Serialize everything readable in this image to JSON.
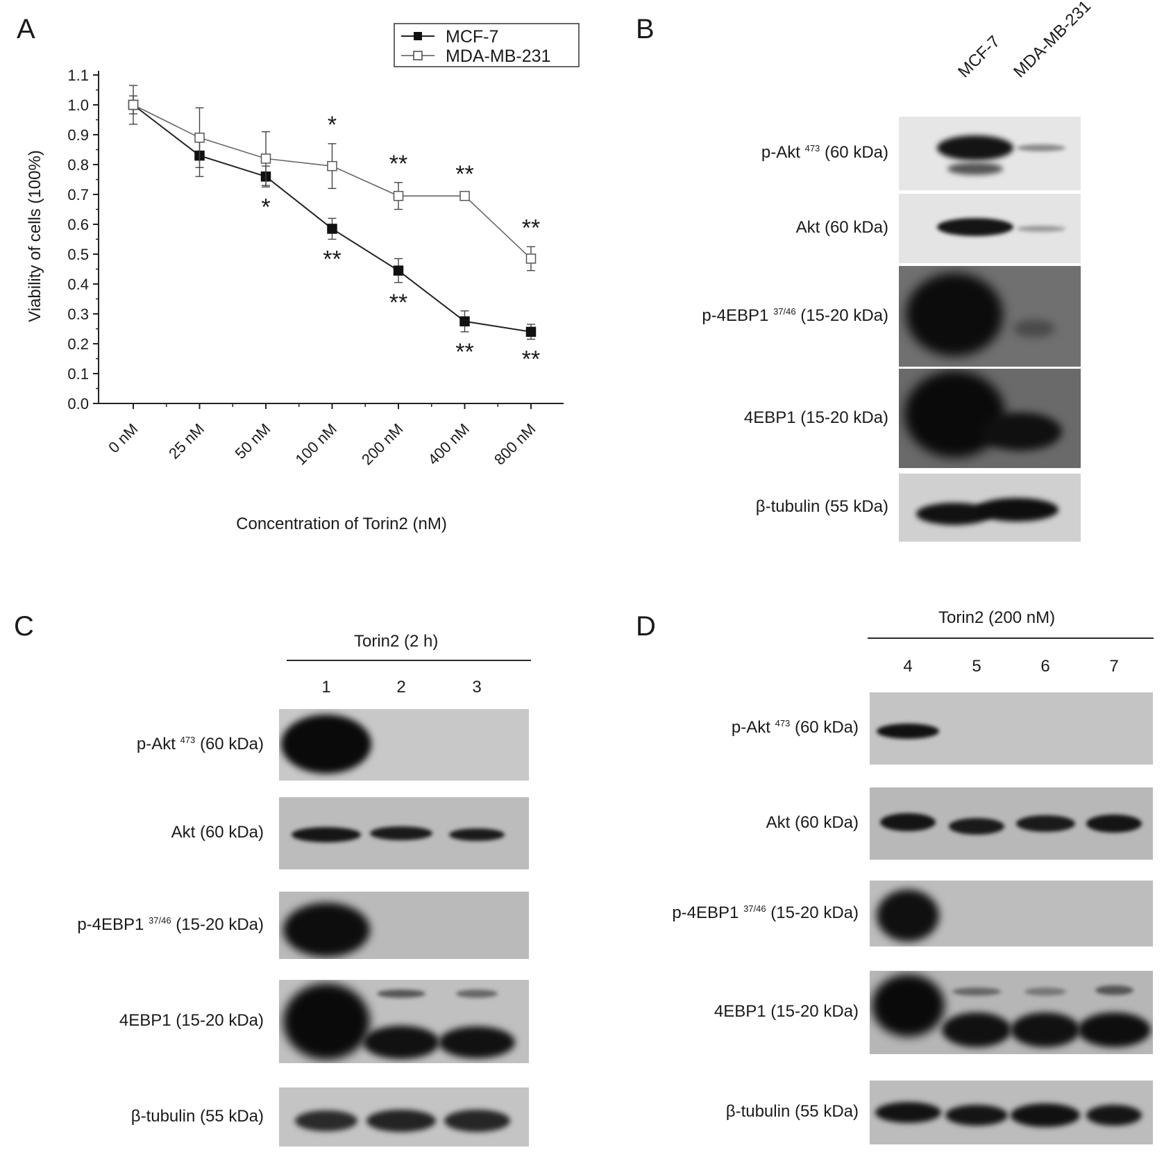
{
  "panels": {
    "a": "A",
    "b": "B",
    "c": "C",
    "d": "D"
  },
  "chart_data": {
    "type": "line",
    "xlabel": "Concentration of Torin2  (nM)",
    "ylabel": "Viability of cells (100%)",
    "categories": [
      "0 nM",
      "25 nM",
      "50 nM",
      "100 nM",
      "200 nM",
      "400 nM",
      "800 nM"
    ],
    "ylim": [
      0,
      1.1
    ],
    "yticks": [
      "0.0",
      "0.1",
      "0.2",
      "0.3",
      "0.4",
      "0.5",
      "0.6",
      "0.7",
      "0.8",
      "0.9",
      "1.0",
      "1.1"
    ],
    "legend_position": "top-right",
    "series": [
      {
        "name": "MCF-7",
        "marker": "filled-square",
        "values": [
          1.0,
          0.83,
          0.76,
          0.585,
          0.445,
          0.275,
          0.24
        ],
        "errors": [
          0.03,
          0.07,
          0.035,
          0.035,
          0.04,
          0.035,
          0.025
        ],
        "sig": [
          "",
          "",
          "*",
          "**",
          "**",
          "**",
          "**"
        ]
      },
      {
        "name": "MDA-MB-231",
        "marker": "open-square",
        "values": [
          1.0,
          0.89,
          0.82,
          0.795,
          0.695,
          0.695,
          0.485
        ],
        "errors": [
          0.065,
          0.1,
          0.09,
          0.075,
          0.045,
          0.01,
          0.04
        ],
        "sig": [
          "",
          "",
          "",
          "*",
          "**",
          "**",
          "**"
        ]
      }
    ]
  },
  "blot_b": {
    "columns": [
      "MCF-7",
      "MDA-MB-231"
    ],
    "rows": [
      {
        "name": "p-Akt",
        "sup": "473",
        "kda": "(60 kDa)"
      },
      {
        "name": "Akt",
        "sup": "",
        "kda": "(60 kDa)"
      },
      {
        "name": "p-4EBP1",
        "sup": "37/46",
        "kda": "(15-20 kDa)"
      },
      {
        "name": "4EBP1",
        "sup": "",
        "kda": "(15-20 kDa)"
      },
      {
        "name": "β-tubulin",
        "sup": "",
        "kda": "(55 kDa)"
      }
    ]
  },
  "blot_c": {
    "header": "Torin2 (2 h)",
    "lanes": [
      "1",
      "2",
      "3"
    ],
    "rows": [
      {
        "name": "p-Akt",
        "sup": "473",
        "kda": "(60 kDa)"
      },
      {
        "name": "Akt",
        "sup": "",
        "kda": "(60 kDa)"
      },
      {
        "name": "p-4EBP1",
        "sup": "37/46",
        "kda": "(15-20 kDa)"
      },
      {
        "name": "4EBP1",
        "sup": "",
        "kda": "(15-20 kDa)"
      },
      {
        "name": "β-tubulin",
        "sup": "",
        "kda": "(55 kDa)"
      }
    ]
  },
  "blot_d": {
    "header": "Torin2 (200 nM)",
    "lanes": [
      "4",
      "5",
      "6",
      "7"
    ],
    "rows": [
      {
        "name": "p-Akt",
        "sup": "473",
        "kda": "(60 kDa)"
      },
      {
        "name": "Akt",
        "sup": "",
        "kda": "(60 kDa)"
      },
      {
        "name": "p-4EBP1",
        "sup": "37/46",
        "kda": "(15-20 kDa)"
      },
      {
        "name": "4EBP1",
        "sup": "",
        "kda": "(15-20 kDa)"
      },
      {
        "name": "β-tubulin",
        "sup": "",
        "kda": "(55 kDa)"
      }
    ]
  }
}
